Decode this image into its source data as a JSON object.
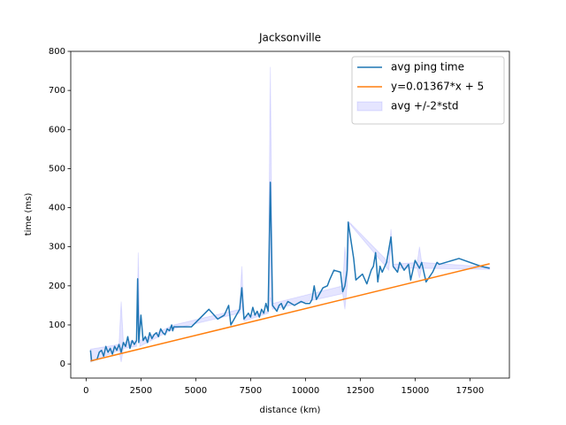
{
  "chart_data": {
    "type": "line",
    "title": "Jacksonville",
    "xlabel": "distance (km)",
    "ylabel": "time (ms)",
    "xlim": [
      -700,
      19300
    ],
    "ylim": [
      -36,
      800
    ],
    "xticks": [
      0,
      2500,
      5000,
      7500,
      10000,
      12500,
      15000,
      17500
    ],
    "yticks": [
      0,
      100,
      200,
      300,
      400,
      500,
      600,
      700,
      800
    ],
    "legend": "upper right",
    "series": [
      {
        "name": "avg ping time",
        "kind": "line",
        "color": "#1f77b4",
        "x": [
          200,
          250,
          500,
          600,
          700,
          800,
          900,
          1000,
          1100,
          1200,
          1300,
          1400,
          1500,
          1600,
          1700,
          1800,
          1900,
          2000,
          2100,
          2200,
          2300,
          2350,
          2400,
          2500,
          2600,
          2700,
          2800,
          2900,
          3000,
          3100,
          3200,
          3300,
          3400,
          3500,
          3600,
          3700,
          3800,
          3900,
          3950,
          4000,
          4800,
          5600,
          6000,
          6300,
          6500,
          6600,
          7000,
          7100,
          7200,
          7400,
          7500,
          7600,
          7700,
          7800,
          7900,
          8000,
          8100,
          8200,
          8300,
          8400,
          8500,
          8700,
          8800,
          8900,
          9000,
          9200,
          9500,
          9800,
          10000,
          10200,
          10300,
          10400,
          10500,
          10800,
          11000,
          11100,
          11300,
          11600,
          11700,
          11800,
          11900,
          11950,
          12200,
          12300,
          12600,
          12800,
          13000,
          13100,
          13200,
          13300,
          13400,
          13500,
          13700,
          13900,
          14000,
          14200,
          14300,
          14500,
          14700,
          14800,
          15000,
          15200,
          15300,
          15500,
          15800,
          16000,
          16100,
          17000,
          18000,
          18400
        ],
        "values": [
          35,
          8,
          12,
          30,
          35,
          20,
          45,
          30,
          40,
          25,
          45,
          35,
          50,
          30,
          55,
          45,
          70,
          40,
          60,
          50,
          60,
          218,
          55,
          125,
          60,
          70,
          55,
          80,
          65,
          75,
          80,
          70,
          90,
          80,
          75,
          90,
          85,
          100,
          85,
          95,
          95,
          140,
          115,
          125,
          150,
          100,
          140,
          195,
          115,
          130,
          120,
          145,
          125,
          135,
          120,
          140,
          130,
          155,
          135,
          465,
          150,
          135,
          150,
          155,
          140,
          160,
          150,
          160,
          155,
          155,
          165,
          200,
          165,
          195,
          200,
          215,
          240,
          235,
          185,
          200,
          240,
          363,
          270,
          215,
          230,
          205,
          240,
          250,
          285,
          210,
          250,
          235,
          260,
          325,
          250,
          235,
          260,
          240,
          255,
          215,
          265,
          245,
          260,
          210,
          235,
          260,
          255,
          270,
          250,
          245
        ]
      },
      {
        "name": "y=0.01367*x + 5",
        "kind": "line",
        "color": "#ff7f0e",
        "x": [
          200,
          18400
        ],
        "values": [
          7.734,
          256.528
        ]
      },
      {
        "name": "avg +/-2*std",
        "kind": "band",
        "color": "#0000ff",
        "alpha": 0.1,
        "x": [
          200,
          1500,
          1600,
          1700,
          2300,
          2380,
          2450,
          4000,
          7000,
          7100,
          7200,
          8300,
          8400,
          8500,
          11700,
          11800,
          11900,
          12000,
          13800,
          13900,
          14000,
          15100,
          15200,
          15300,
          18400
        ],
        "upper": [
          38,
          50,
          160,
          55,
          60,
          285,
          60,
          100,
          140,
          250,
          120,
          135,
          760,
          155,
          200,
          300,
          240,
          363,
          260,
          345,
          255,
          260,
          300,
          260,
          248
        ],
        "lower": [
          5,
          35,
          5,
          40,
          45,
          150,
          45,
          90,
          130,
          150,
          110,
          130,
          170,
          140,
          180,
          140,
          200,
          360,
          240,
          305,
          245,
          245,
          220,
          245,
          242
        ]
      }
    ]
  }
}
